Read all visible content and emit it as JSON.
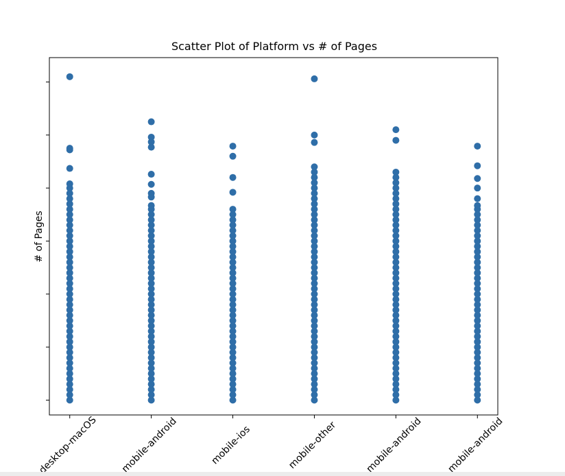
{
  "chart_data": {
    "type": "scatter",
    "title": "Scatter Plot of Platform vs # of Pages",
    "y_label": "# of Pages",
    "color": "#2f6ea8",
    "categories": [
      "desktop-macOS",
      "mobile-android",
      "mobile-ios",
      "mobile-other",
      "mobile-android",
      "mobile-android"
    ],
    "ylim": [
      -0.28,
      6.46
    ],
    "yticks": [
      0,
      1,
      2,
      3,
      4,
      5,
      6
    ],
    "values": [
      [
        0,
        0.1,
        0.2,
        0.3,
        0.4,
        0.5,
        0.6,
        0.7,
        0.8,
        0.9,
        1,
        1.1,
        1.2,
        1.3,
        1.4,
        1.5,
        1.6,
        1.7,
        1.8,
        1.9,
        2,
        2.1,
        2.2,
        2.3,
        2.4,
        2.5,
        2.6,
        2.7,
        2.8,
        2.9,
        3,
        3.1,
        3.2,
        3.3,
        3.4,
        3.5,
        3.6,
        3.7,
        3.8,
        3.9,
        4,
        4.08,
        4.37,
        4.72,
        4.75,
        6.1
      ],
      [
        0,
        0.1,
        0.2,
        0.3,
        0.4,
        0.5,
        0.6,
        0.7,
        0.8,
        0.9,
        1,
        1.1,
        1.2,
        1.3,
        1.4,
        1.5,
        1.6,
        1.7,
        1.8,
        1.9,
        2,
        2.1,
        2.2,
        2.3,
        2.4,
        2.5,
        2.6,
        2.7,
        2.8,
        2.9,
        3,
        3.1,
        3.2,
        3.3,
        3.4,
        3.5,
        3.6,
        3.67,
        3.83,
        3.9,
        4.07,
        4.26,
        4.77,
        4.87,
        4.96,
        5.25
      ],
      [
        0,
        0.1,
        0.2,
        0.3,
        0.4,
        0.5,
        0.6,
        0.7,
        0.8,
        0.9,
        1,
        1.1,
        1.2,
        1.3,
        1.4,
        1.5,
        1.6,
        1.7,
        1.8,
        1.9,
        2,
        2.1,
        2.2,
        2.3,
        2.4,
        2.5,
        2.6,
        2.7,
        2.8,
        2.9,
        3,
        3.1,
        3.2,
        3.3,
        3.4,
        3.5,
        3.6,
        3.92,
        4.2,
        4.6,
        4.79
      ],
      [
        0,
        0.1,
        0.2,
        0.3,
        0.4,
        0.5,
        0.6,
        0.7,
        0.8,
        0.9,
        1,
        1.1,
        1.2,
        1.3,
        1.4,
        1.5,
        1.6,
        1.7,
        1.8,
        1.9,
        2,
        2.1,
        2.2,
        2.3,
        2.4,
        2.5,
        2.6,
        2.7,
        2.8,
        2.9,
        3,
        3.1,
        3.2,
        3.3,
        3.4,
        3.5,
        3.6,
        3.7,
        3.8,
        3.9,
        4,
        4.1,
        4.2,
        4.3,
        4.4,
        4.86,
        5,
        6.06
      ],
      [
        0,
        0.1,
        0.2,
        0.3,
        0.4,
        0.5,
        0.6,
        0.7,
        0.8,
        0.9,
        1,
        1.1,
        1.2,
        1.3,
        1.4,
        1.5,
        1.6,
        1.7,
        1.8,
        1.9,
        2,
        2.1,
        2.2,
        2.3,
        2.4,
        2.5,
        2.6,
        2.7,
        2.8,
        2.9,
        3,
        3.1,
        3.2,
        3.3,
        3.4,
        3.5,
        3.6,
        3.7,
        3.8,
        3.9,
        4,
        4.1,
        4.2,
        4.3,
        4.9,
        5.1
      ],
      [
        0,
        0.1,
        0.2,
        0.3,
        0.4,
        0.5,
        0.6,
        0.7,
        0.8,
        0.9,
        1,
        1.1,
        1.2,
        1.3,
        1.4,
        1.5,
        1.6,
        1.7,
        1.8,
        1.9,
        2,
        2.1,
        2.2,
        2.3,
        2.4,
        2.5,
        2.6,
        2.7,
        2.8,
        2.9,
        3,
        3.1,
        3.2,
        3.3,
        3.4,
        3.5,
        3.6,
        3.67,
        3.8,
        4,
        4.18,
        4.42,
        4.79
      ]
    ]
  }
}
